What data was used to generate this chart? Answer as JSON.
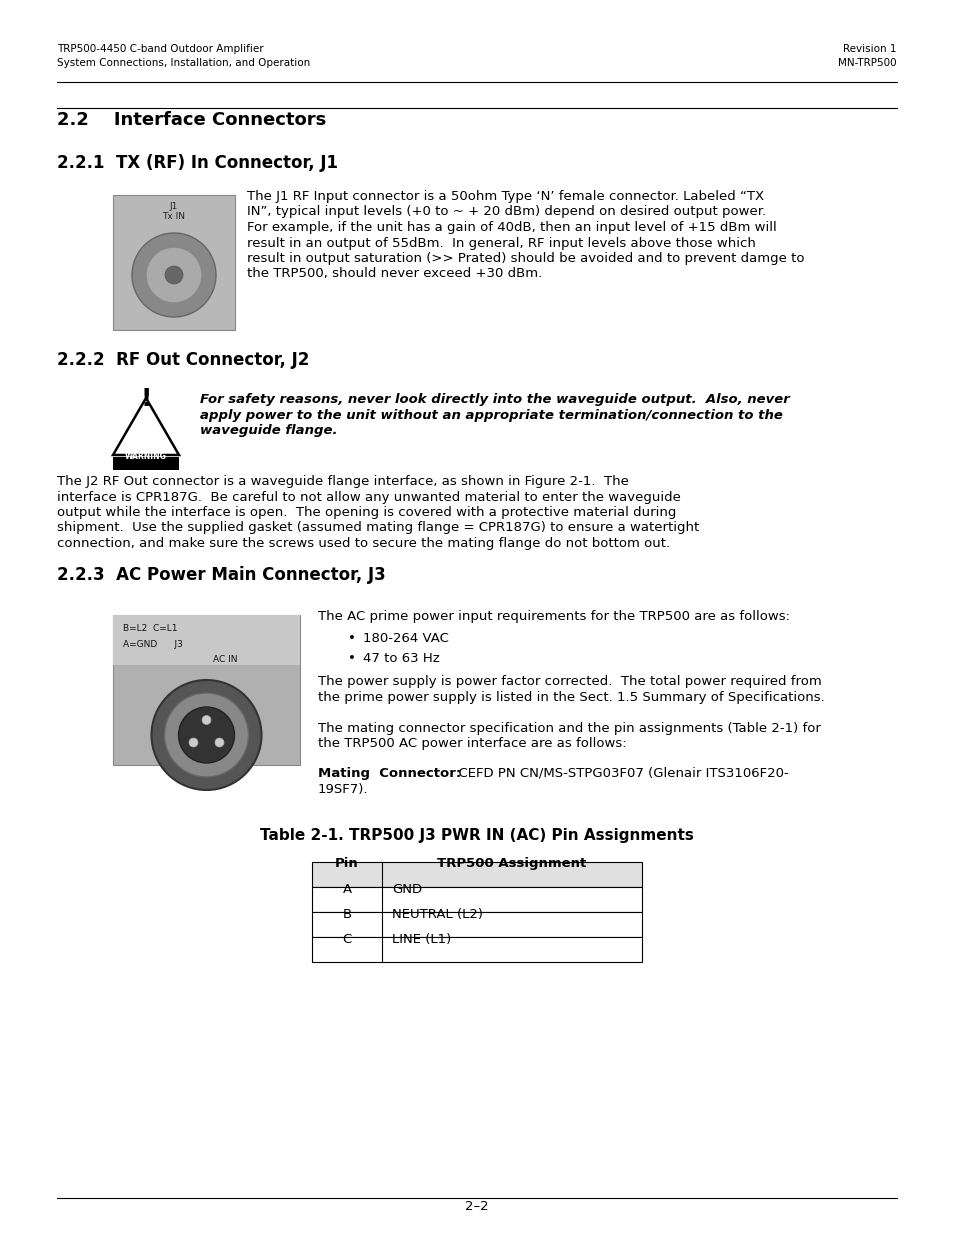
{
  "header_left_line1": "TRP500-4450 C-band Outdoor Amplifier",
  "header_left_line2": "System Connections, Installation, and Operation",
  "header_right_line1": "Revision 1",
  "header_right_line2": "MN-TRP500",
  "section_22_title": "2.2    Interface Connectors",
  "section_221_title": "2.2.1  TX (RF) In Connector, J1",
  "section_222_title": "2.2.2  RF Out Connector, J2",
  "section_223_title": "2.2.3  AC Power Main Connector, J3",
  "warning_line1": "For safety reasons, never look directly into the waveguide output.  Also, never",
  "warning_line2": "apply power to the unit without an appropriate termination/connection to the",
  "warning_line3": "waveguide flange.",
  "body221_lines": [
    "The J1 RF Input connector is a 50ohm Type ‘N’ female connector. Labeled “TX",
    "IN”, typical input levels (+0 to ~ + 20 dBm) depend on desired output power.",
    "For example, if the unit has a gain of 40dB, then an input level of +15 dBm will",
    "result in an output of 55dBm.  In general, RF input levels above those which",
    "result in output saturation (>> Prated) should be avoided and to prevent damge to",
    "the TRP500, should never exceed +30 dBm."
  ],
  "body222_lines": [
    "The J2 RF Out connector is a waveguide flange interface, as shown in Figure 2-1.  The",
    "interface is CPR187G.  Be careful to not allow any unwanted material to enter the waveguide",
    "output while the interface is open.  The opening is covered with a protective material during",
    "shipment.  Use the supplied gasket (assumed mating flange = CPR187G) to ensure a watertight",
    "connection, and make sure the screws used to secure the mating flange do not bottom out."
  ],
  "section_223_intro": "The AC prime power input requirements for the TRP500 are as follows:",
  "bullet1": "180-264 VAC",
  "bullet2": "47 to 63 Hz",
  "body223_p1_lines": [
    "The power supply is power factor corrected.  The total power required from",
    "the prime power supply is listed in the Sect. 1.5 Summary of Specifications."
  ],
  "body223_p1_bold": "Sect. 1.5 Summary of Specifications.",
  "body223_p2_lines": [
    "The mating connector specification and the pin assignments (Table 2-1) for",
    "the TRP500 AC power interface are as follows:"
  ],
  "mating_bold": "Mating  Connector:",
  "mating_normal": "  CEFD PN CN/MS-STPG03F07 (Glenair ITS3106F20-",
  "mating_line2": "19SF7).",
  "table_title": "Table 2-1. TRP500 J3 PWR IN (AC) Pin Assignments",
  "table_headers": [
    "Pin",
    "TRP500 Assignment"
  ],
  "table_rows": [
    [
      "A",
      "GND"
    ],
    [
      "B",
      "NEUTRAL (L2)"
    ],
    [
      "C",
      "LINE (L1)"
    ]
  ],
  "footer_text": "2–2",
  "bg_color": "#ffffff"
}
